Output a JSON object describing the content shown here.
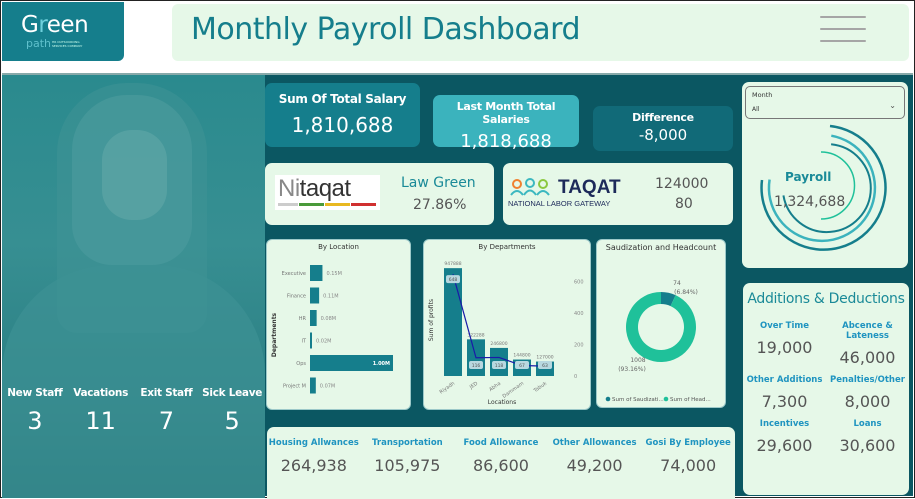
{
  "logo": {
    "word_a": "G",
    "word_r": "r",
    "word_b": "een",
    "sub": "path",
    "tagline": "HR OUTSOURCING SERVICES COMPANY"
  },
  "header": {
    "title": "Monthly Payroll Dashboard",
    "menu_icon": "hamburger-menu-icon"
  },
  "staff_stats": [
    {
      "label": "New Staff",
      "value": "3"
    },
    {
      "label": "Vacations",
      "value": "11"
    },
    {
      "label": "Exit Staff",
      "value": "7"
    },
    {
      "label": "Sick Leave",
      "value": "5"
    }
  ],
  "kpis": {
    "total_salary": {
      "label": "Sum Of Total Salary",
      "value": "1,810,688"
    },
    "last_month": {
      "label": "Last Month Total Salaries",
      "value": "1,818,688"
    },
    "difference": {
      "label": "Difference",
      "value": "-8,000"
    }
  },
  "nitaqat": {
    "logo_text_a": "Ni",
    "logo_text_b": "taqat",
    "label": "Law Green",
    "value": "27.86%"
  },
  "taqat": {
    "logo_text": "TAQAT",
    "logo_sub": "NATIONAL LABOR GATEWAY",
    "value1": "124000",
    "value2": "80"
  },
  "slicer": {
    "label": "Month",
    "value": "All"
  },
  "payroll": {
    "label": "Payroll",
    "value": "1,324,688"
  },
  "additions_deductions": {
    "title": "Additions & Deductions",
    "items": [
      {
        "label": "Over Time",
        "value": "19,000"
      },
      {
        "label": "Abcence & Lateness",
        "value": "46,000"
      },
      {
        "label": "Other Additions",
        "value": "7,300"
      },
      {
        "label": "Penalties/Other",
        "value": "8,000"
      },
      {
        "label": "Incentives",
        "value": "29,600"
      },
      {
        "label": "Loans",
        "value": "30,600"
      }
    ]
  },
  "allowances": [
    {
      "label": "Housing Allwances",
      "value": "264,938"
    },
    {
      "label": "Transportation",
      "value": "105,975"
    },
    {
      "label": "Food Allowance",
      "value": "86,600"
    },
    {
      "label": "Other Allowances",
      "value": "49,200"
    },
    {
      "label": "Gosi By Employee",
      "value": "74,000"
    }
  ],
  "colors": {
    "teal": "#157e8c",
    "dark": "#0b5762",
    "light": "#e6f8e8",
    "accent": "#1a8a98",
    "green": "#1fc19a",
    "line": "#1a1aa8"
  },
  "chart_data": [
    {
      "type": "bar",
      "orientation": "horizontal",
      "title": "By Location",
      "ylabel": "Departments",
      "categories": [
        "Executive",
        "Finance",
        "HR",
        "IT",
        "Ops",
        "Project M"
      ],
      "values": [
        0.15,
        0.11,
        0.08,
        0.02,
        1.0,
        0.07
      ],
      "labels": [
        "0.15M",
        "0.11M",
        "0.08M",
        "0.02M",
        "1.00M",
        "0.07M"
      ],
      "unit": "M"
    },
    {
      "type": "bar",
      "title": "By Departments",
      "xlabel": "Locations",
      "ylabel": "Sum of profits",
      "categories": [
        "Riyadh",
        "JED",
        "Abha",
        "Dammam",
        "Tabuk"
      ],
      "series": [
        {
          "name": "Sum of profits",
          "type": "bar",
          "values": [
            947888,
            322288,
            246800,
            144800,
            127000
          ]
        },
        {
          "name": "Headcount",
          "type": "line",
          "axis": "right",
          "values": [
            648,
            116,
            118,
            67,
            63
          ]
        }
      ],
      "right_axis_ticks": [
        "0",
        "200",
        "400",
        "600"
      ],
      "right_ylim": [
        0,
        700
      ]
    },
    {
      "type": "pie",
      "donut": true,
      "title": "Saudization and Headcount",
      "labels": [
        "Sum of Saudizati...",
        "Sum of Head..."
      ],
      "values": [
        74,
        1008
      ],
      "percents": [
        "(6.84%)",
        "(93.16%)"
      ],
      "colors": [
        "#157e8c",
        "#1fc19a"
      ],
      "legend": "bottom"
    }
  ]
}
